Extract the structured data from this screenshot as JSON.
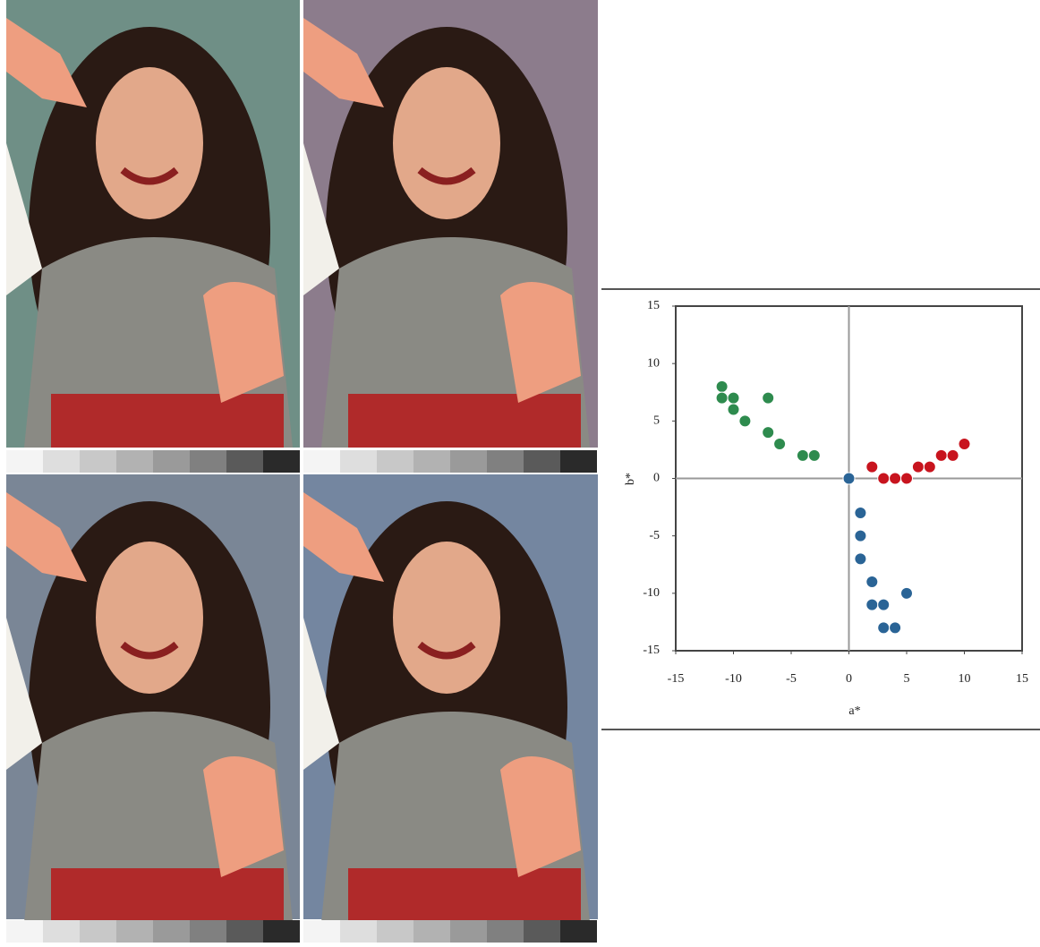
{
  "chart_data": {
    "type": "scatter",
    "x_label": "a*",
    "y_label": "b*",
    "xlim": [
      -15,
      15
    ],
    "ylim": [
      -15,
      15
    ],
    "xticks": [
      -15,
      -10,
      -5,
      0,
      5,
      10,
      15
    ],
    "yticks": [
      -15,
      -10,
      -5,
      0,
      5,
      10,
      15
    ],
    "series": [
      {
        "color": "#2e8b4e",
        "x": [
          -11,
          -11,
          -10,
          -10,
          -9,
          -7,
          -7,
          -6,
          -4,
          -3
        ],
        "y": [
          8,
          7,
          7,
          6,
          5,
          7,
          4,
          3,
          2,
          2
        ]
      },
      {
        "color": "#c8141e",
        "x": [
          2,
          3,
          4,
          5,
          6,
          7,
          8,
          9,
          10
        ],
        "y": [
          1,
          0,
          0,
          0,
          1,
          1,
          2,
          2,
          3
        ]
      },
      {
        "color": "#2a6496",
        "x": [
          0,
          1,
          1,
          1,
          2,
          2,
          3,
          3,
          4,
          5
        ],
        "y": [
          0,
          -3,
          -5,
          -7,
          -9,
          -11,
          -11,
          -13,
          -13,
          -10
        ]
      }
    ]
  }
}
